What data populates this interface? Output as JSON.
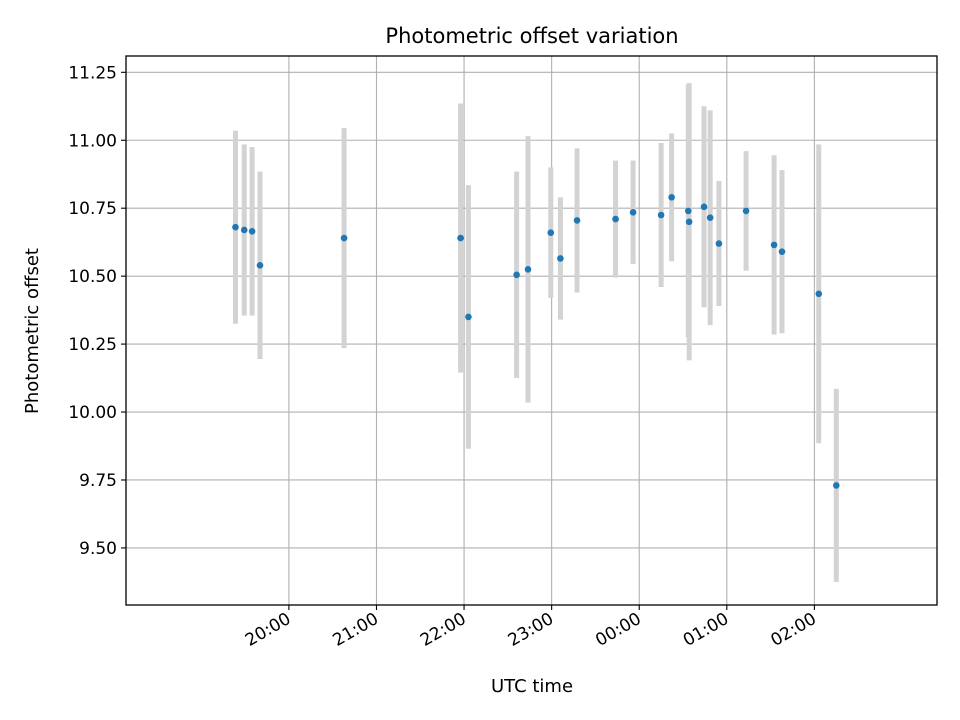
{
  "chart_data": {
    "type": "scatter",
    "title": "Photometric offset variation",
    "xlabel": "UTC time",
    "ylabel": "Photometric offset",
    "x_unit": "hours since 19:00 UTC",
    "xlim": [
      -0.86,
      8.4
    ],
    "ylim": [
      9.29,
      11.31
    ],
    "grid": true,
    "x_ticks": [
      {
        "value": 1,
        "label": "20:00"
      },
      {
        "value": 2,
        "label": "21:00"
      },
      {
        "value": 3,
        "label": "22:00"
      },
      {
        "value": 4,
        "label": "23:00"
      },
      {
        "value": 5,
        "label": "00:00"
      },
      {
        "value": 6,
        "label": "01:00"
      },
      {
        "value": 7,
        "label": "02:00"
      }
    ],
    "y_ticks": [
      {
        "value": 9.5,
        "label": "9.50"
      },
      {
        "value": 9.75,
        "label": "9.75"
      },
      {
        "value": 10.0,
        "label": "10.00"
      },
      {
        "value": 10.25,
        "label": "10.25"
      },
      {
        "value": 10.5,
        "label": "10.50"
      },
      {
        "value": 10.75,
        "label": "10.75"
      },
      {
        "value": 11.0,
        "label": "11.00"
      },
      {
        "value": 11.25,
        "label": "11.25"
      }
    ],
    "marker_color": "#1f77b4",
    "errorbar_color": "#d3d3d3",
    "points": [
      {
        "x": 0.39,
        "y": 10.68,
        "err": 0.355
      },
      {
        "x": 0.49,
        "y": 10.67,
        "err": 0.315
      },
      {
        "x": 0.58,
        "y": 10.665,
        "err": 0.31
      },
      {
        "x": 0.67,
        "y": 10.54,
        "err": 0.345
      },
      {
        "x": 1.63,
        "y": 10.64,
        "err": 0.405
      },
      {
        "x": 2.96,
        "y": 10.64,
        "err": 0.495
      },
      {
        "x": 3.05,
        "y": 10.35,
        "err": 0.485
      },
      {
        "x": 3.6,
        "y": 10.505,
        "err": 0.38
      },
      {
        "x": 3.73,
        "y": 10.525,
        "err": 0.49
      },
      {
        "x": 3.99,
        "y": 10.66,
        "err": 0.24
      },
      {
        "x": 4.1,
        "y": 10.565,
        "err": 0.225
      },
      {
        "x": 4.29,
        "y": 10.705,
        "err": 0.265
      },
      {
        "x": 4.73,
        "y": 10.71,
        "err": 0.215
      },
      {
        "x": 4.93,
        "y": 10.735,
        "err": 0.19
      },
      {
        "x": 5.25,
        "y": 10.725,
        "err": 0.265
      },
      {
        "x": 5.37,
        "y": 10.79,
        "err": 0.235
      },
      {
        "x": 5.56,
        "y": 10.74,
        "err": 0.465
      },
      {
        "x": 5.57,
        "y": 10.7,
        "err": 0.51
      },
      {
        "x": 5.74,
        "y": 10.755,
        "err": 0.37
      },
      {
        "x": 5.81,
        "y": 10.715,
        "err": 0.395
      },
      {
        "x": 5.91,
        "y": 10.62,
        "err": 0.23
      },
      {
        "x": 6.22,
        "y": 10.74,
        "err": 0.22
      },
      {
        "x": 6.54,
        "y": 10.615,
        "err": 0.33
      },
      {
        "x": 6.63,
        "y": 10.59,
        "err": 0.3
      },
      {
        "x": 7.05,
        "y": 10.435,
        "err": 0.55
      },
      {
        "x": 7.25,
        "y": 9.73,
        "err": 0.355
      }
    ]
  }
}
